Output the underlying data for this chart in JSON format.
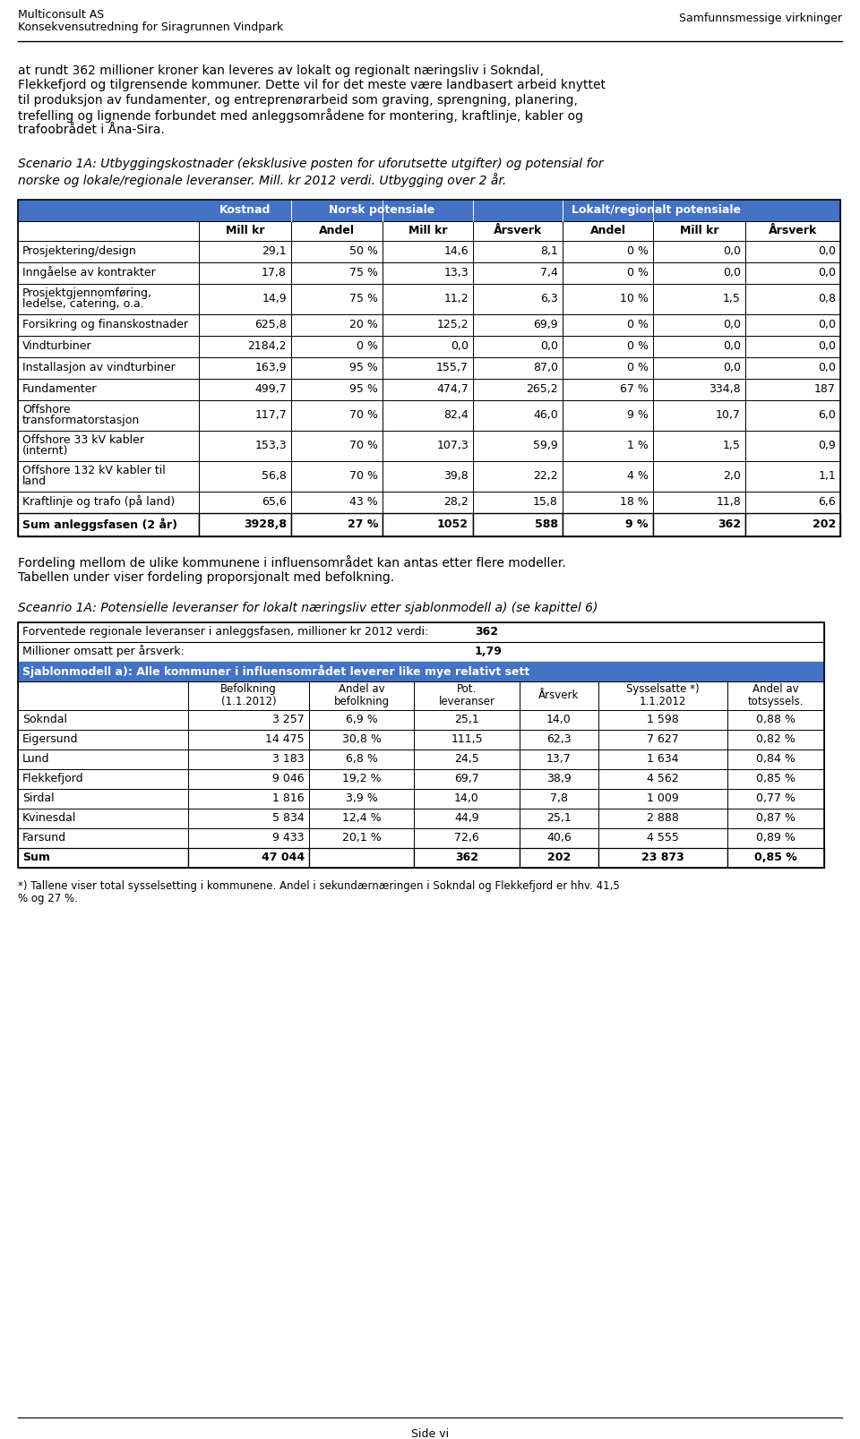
{
  "header_left_line1": "Multiconsult AS",
  "header_left_line2": "Konsekvensutredning for Siragrunnen Vindpark",
  "header_right": "Samfunnsmessige virkninger",
  "body_lines": [
    "at rundt 362 millioner kroner kan leveres av lokalt og regionalt næringsliv i Sokndal,",
    "Flekkefjord og tilgrensende kommuner. Dette vil for det meste være landbasert arbeid knyttet",
    "til produksjon av fundamenter, og entreprenørarbeid som graving, sprengning, planering,",
    "trefelling og lignende forbundet med anleggsområdene for montering, kraftlinje, kabler og",
    "trafoobrådet i Åna-Sira."
  ],
  "sc1_lines": [
    "Scenario 1A: Utbyggingskostnader (eksklusive posten for uforutsette utgifter) og potensial for",
    "norske og lokale/regionale leveranser. Mill. kr 2012 verdi. Utbygging over 2 år."
  ],
  "table1_rows": [
    [
      "Prosjektering/design",
      "29,1",
      "50 %",
      "14,6",
      "8,1",
      "0 %",
      "0,0",
      "0,0"
    ],
    [
      "Inngåelse av kontrakter",
      "17,8",
      "75 %",
      "13,3",
      "7,4",
      "0 %",
      "0,0",
      "0,0"
    ],
    [
      "Prosjektgjennomføring,\nledelse, catering, o.a.",
      "14,9",
      "75 %",
      "11,2",
      "6,3",
      "10 %",
      "1,5",
      "0,8"
    ],
    [
      "Forsikring og finanskostnader",
      "625,8",
      "20 %",
      "125,2",
      "69,9",
      "0 %",
      "0,0",
      "0,0"
    ],
    [
      "Vindturbiner",
      "2184,2",
      "0 %",
      "0,0",
      "0,0",
      "0 %",
      "0,0",
      "0,0"
    ],
    [
      "Installasjon av vindturbiner",
      "163,9",
      "95 %",
      "155,7",
      "87,0",
      "0 %",
      "0,0",
      "0,0"
    ],
    [
      "Fundamenter",
      "499,7",
      "95 %",
      "474,7",
      "265,2",
      "67 %",
      "334,8",
      "187"
    ],
    [
      "Offshore\ntransformatorstasjon",
      "117,7",
      "70 %",
      "82,4",
      "46,0",
      "9 %",
      "10,7",
      "6,0"
    ],
    [
      "Offshore 33 kV kabler\n(internt)",
      "153,3",
      "70 %",
      "107,3",
      "59,9",
      "1 %",
      "1,5",
      "0,9"
    ],
    [
      "Offshore 132 kV kabler til\nland",
      "56,8",
      "70 %",
      "39,8",
      "22,2",
      "4 %",
      "2,0",
      "1,1"
    ],
    [
      "Kraftlinje og trafo (på land)",
      "65,6",
      "43 %",
      "28,2",
      "15,8",
      "18 %",
      "11,8",
      "6,6"
    ]
  ],
  "table1_sum_row": [
    "Sum anleggsfasen (2 år)",
    "3928,8",
    "27 %",
    "1052",
    "588",
    "9 %",
    "362",
    "202"
  ],
  "mid_lines": [
    "Fordeling mellom de ulike kommunene i influensområdet kan antas etter flere modeller.",
    "Tabellen under viser fordeling proporsjonalt med befolkning."
  ],
  "sc2_text": "Sceanrio 1A: Potensielle leveranser for lokalt næringsliv etter sjablonmodell a) (se kapittel 6)",
  "info_row1_label": "Forventede regionale leveranser i anleggsfasen, millioner kr 2012 verdi:",
  "info_row1_value": "362",
  "info_row2_label": "Millioner omsatt per årsverk:",
  "info_row2_value": "1,79",
  "table2_blue_header": "Sjablonmodell a): Alle kommuner i influensområdet leverer like mye relativt sett",
  "table2_col_headers": [
    "",
    "Befolkning\n(1.1.2012)",
    "Andel av\nbefolkning",
    "Pot.\nleveranser",
    "Årsverk",
    "Sysselsatte *)\n1.1.2012",
    "Andel av\ntotsyssels."
  ],
  "table2_rows": [
    [
      "Sokndal",
      "3 257",
      "6,9 %",
      "25,1",
      "14,0",
      "1 598",
      "0,88 %"
    ],
    [
      "Eigersund",
      "14 475",
      "30,8 %",
      "111,5",
      "62,3",
      "7 627",
      "0,82 %"
    ],
    [
      "Lund",
      "3 183",
      "6,8 %",
      "24,5",
      "13,7",
      "1 634",
      "0,84 %"
    ],
    [
      "Flekkefjord",
      "9 046",
      "19,2 %",
      "69,7",
      "38,9",
      "4 562",
      "0,85 %"
    ],
    [
      "Sirdal",
      "1 816",
      "3,9 %",
      "14,0",
      "7,8",
      "1 009",
      "0,77 %"
    ],
    [
      "Kvinesdal",
      "5 834",
      "12,4 %",
      "44,9",
      "25,1",
      "2 888",
      "0,87 %"
    ],
    [
      "Farsund",
      "9 433",
      "20,1 %",
      "72,6",
      "40,6",
      "4 555",
      "0,89 %"
    ]
  ],
  "table2_sum_row": [
    "Sum",
    "47 044",
    "",
    "362",
    "202",
    "23 873",
    "0,85 %"
  ],
  "fn_lines": [
    "*) Tallene viser total sysselsetting i kommunene. Andel i sekundærnæringen i Sokndal og Flekkefjord er hhv. 41,5",
    "% og 27 %."
  ],
  "footer_text": "Side vi",
  "blue_color": "#4472C4",
  "white": "#FFFFFF",
  "black": "#000000"
}
